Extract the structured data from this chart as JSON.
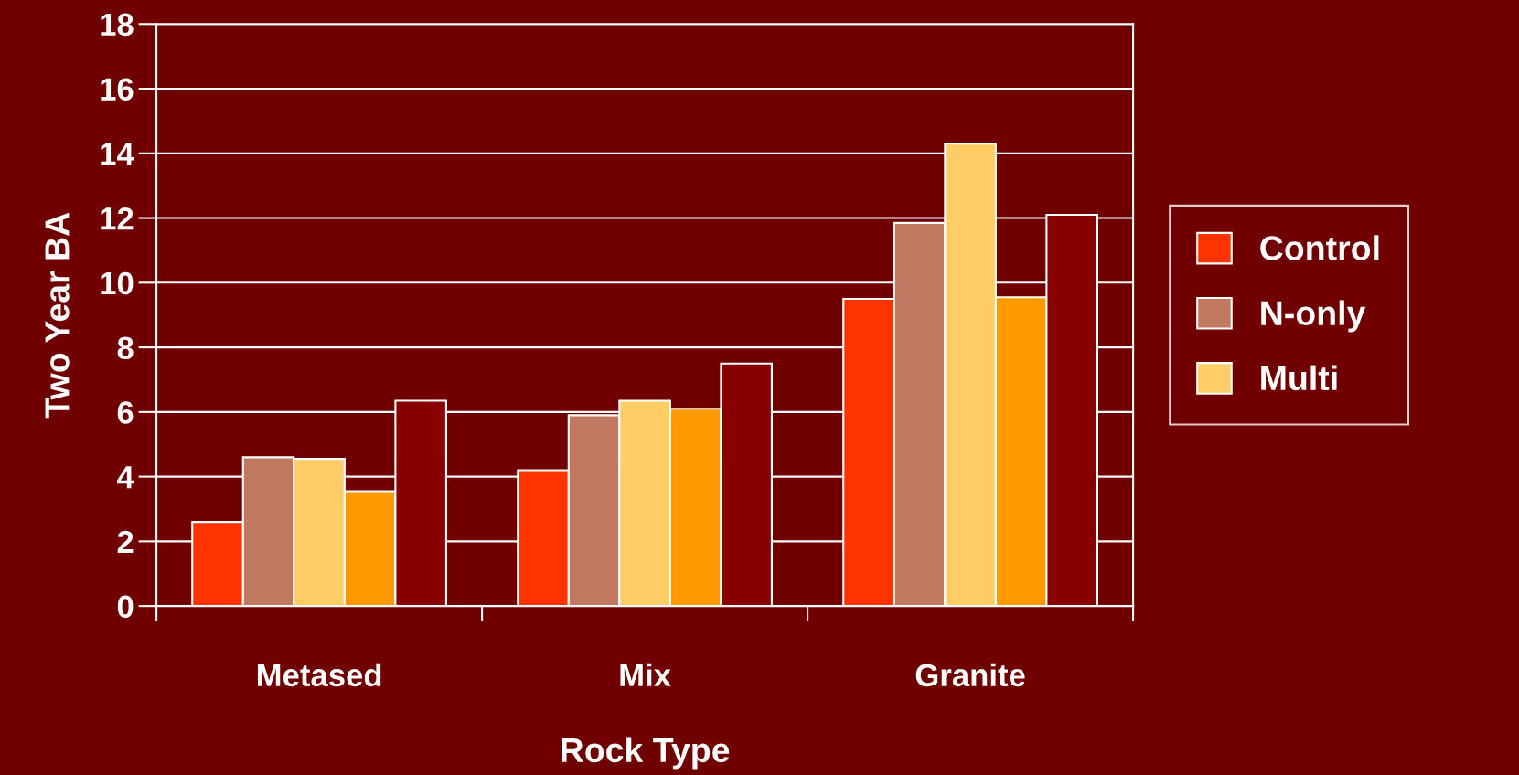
{
  "chart_data": {
    "type": "bar",
    "xlabel": "Rock Type",
    "ylabel": "Two Year BA",
    "categories": [
      "Metased",
      "Mix",
      "Granite"
    ],
    "series": [
      {
        "name": "Control",
        "color": "#ff3300",
        "values": [
          2.6,
          4.2,
          9.5
        ]
      },
      {
        "name": "N-only",
        "color": "#c07860",
        "values": [
          4.6,
          5.9,
          11.85
        ]
      },
      {
        "name": "Multi",
        "color": "#ffcc66",
        "values": [
          4.55,
          6.35,
          14.3
        ]
      },
      {
        "color": "#ff9900",
        "values": [
          3.55,
          6.1,
          9.55
        ]
      },
      {
        "color": "#880000",
        "values": [
          6.35,
          7.5,
          12.1
        ]
      }
    ],
    "ylim": [
      0,
      18
    ],
    "yticks": [
      0,
      2,
      4,
      6,
      8,
      10,
      12,
      14,
      16,
      18
    ],
    "grid": "y",
    "legend": "right"
  }
}
